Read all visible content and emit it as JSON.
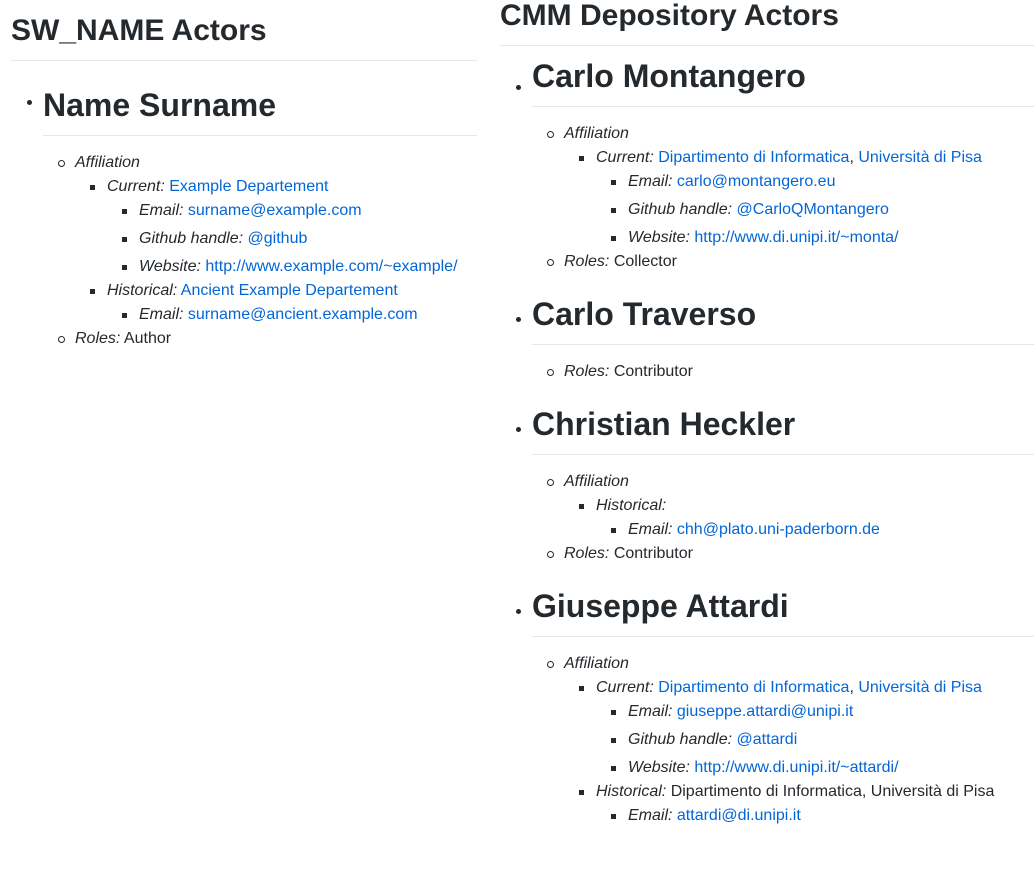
{
  "left": {
    "title": "SW_NAME Actors",
    "actor": {
      "name": "Name Surname",
      "affiliation_label": "Affiliation",
      "current_label": "Current:",
      "current_org": "Example Departement",
      "email_label": "Email:",
      "email": "surname@example.com",
      "github_label": "Github handle:",
      "github": "@github",
      "website_label": "Website:",
      "website": "http://www.example.com/~example/",
      "historical_label": "Historical:",
      "historical_org": "Ancient Example Departement",
      "historical_email_label": "Email:",
      "historical_email": "surname@ancient.example.com",
      "roles_label": "Roles:",
      "roles": "Author"
    }
  },
  "right": {
    "title": "CMM Depository Actors",
    "actors": [
      {
        "name": "Carlo Montangero",
        "affiliation_label": "Affiliation",
        "current_label": "Current:",
        "current_dept": "Dipartimento di Informatica",
        "sep": ", ",
        "current_univ": "Università di Pisa",
        "email_label": "Email:",
        "email": "carlo@montangero.eu",
        "github_label": "Github handle:",
        "github": "@CarloQMontangero",
        "website_label": "Website:",
        "website": "http://www.di.unipi.it/~monta/",
        "roles_label": "Roles:",
        "roles": "Collector"
      },
      {
        "name": "Carlo Traverso",
        "roles_label": "Roles:",
        "roles": "Contributor"
      },
      {
        "name": "Christian Heckler",
        "affiliation_label": "Affiliation",
        "historical_label": "Historical:",
        "email_label": "Email:",
        "email": "chh@plato.uni-paderborn.de",
        "roles_label": "Roles:",
        "roles": "Contributor"
      },
      {
        "name": "Giuseppe Attardi",
        "affiliation_label": "Affiliation",
        "current_label": "Current:",
        "current_dept": "Dipartimento di Informatica",
        "sep": ", ",
        "current_univ": "Università di Pisa",
        "email_label": "Email:",
        "email": "giuseppe.attardi@unipi.it",
        "github_label": "Github handle:",
        "github": "@attardi",
        "website_label": "Website:",
        "website": "http://www.di.unipi.it/~attardi/",
        "historical_label": "Historical:",
        "historical_org": "Dipartimento di Informatica, Università di Pisa",
        "historical_email_label": "Email:",
        "historical_email": "attardi@di.unipi.it"
      }
    ]
  },
  "colors": {
    "text": "#24292e",
    "link": "#0366d6",
    "rule": "#e6e6e6"
  }
}
